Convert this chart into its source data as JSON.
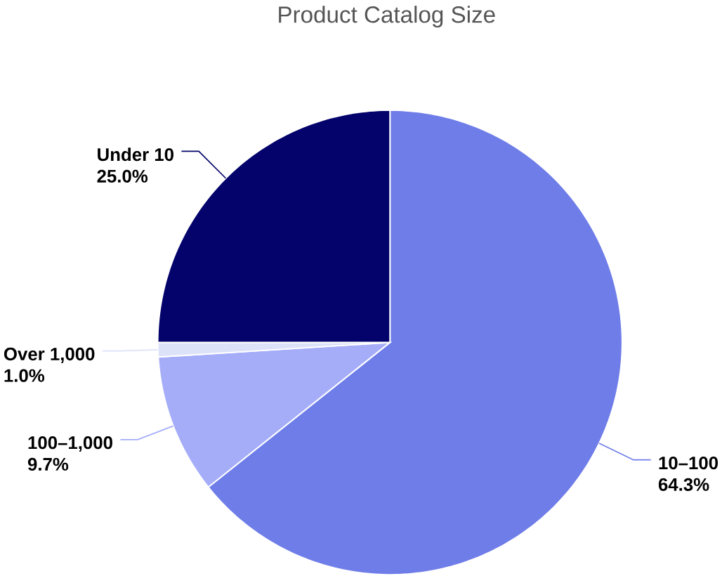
{
  "chart_data": {
    "type": "pie",
    "title": "Product Catalog Size",
    "categories": [
      "10–100",
      "100–1,000",
      "Over 1,000",
      "Under 10"
    ],
    "values": [
      64.3,
      9.7,
      1.0,
      25.0
    ],
    "colors": [
      "#6f7de8",
      "#a5adf9",
      "#dce2f8",
      "#03036b"
    ],
    "value_labels": [
      "64.3%",
      "9.7%",
      "1.0%",
      "25.0%"
    ]
  }
}
